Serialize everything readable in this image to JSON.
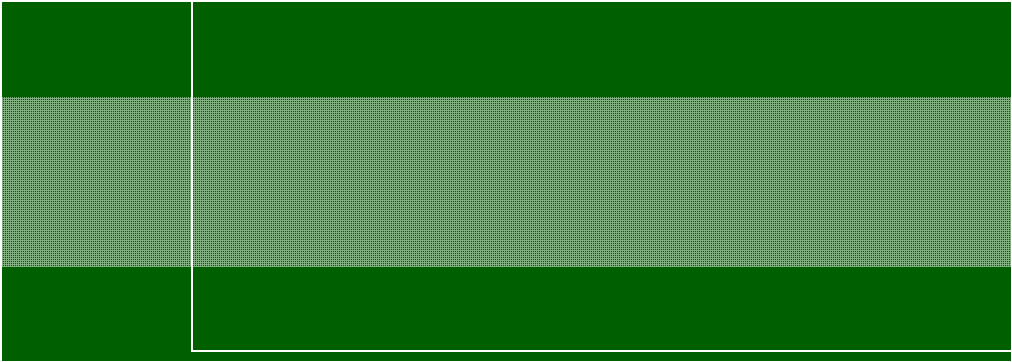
{
  "screen": {
    "background_color": "#006000",
    "line_color": "#ffffff",
    "pattern": "dense-white-dot-grid"
  }
}
